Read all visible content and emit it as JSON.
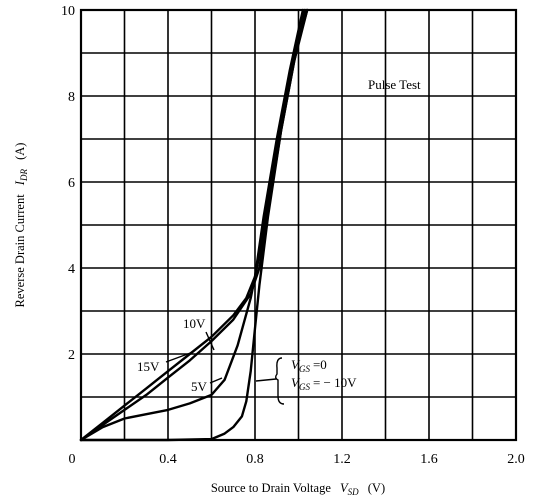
{
  "chart_data": {
    "type": "line",
    "xlabel": "Source to Drain Voltage",
    "xlabel_symbol": "V",
    "xlabel_sub": "SD",
    "xlabel_unit": "(V)",
    "ylabel": "Reverse Drain Current",
    "ylabel_symbol": "I",
    "ylabel_sub": "DR",
    "ylabel_unit": "(A)",
    "xlim": [
      0,
      2.0
    ],
    "ylim": [
      0,
      10
    ],
    "x_ticks": [
      "0",
      "0.4",
      "0.8",
      "1.2",
      "1.6",
      "2.0"
    ],
    "y_ticks": [
      "2",
      "4",
      "6",
      "8",
      "10"
    ],
    "x_tick_values": [
      0,
      0.4,
      0.8,
      1.2,
      1.6,
      2.0
    ],
    "y_tick_values": [
      2,
      4,
      6,
      8,
      10
    ],
    "x_grid_step": 0.2,
    "y_grid_step": 1,
    "grid": true,
    "annotation": "Pulse Test",
    "series": [
      {
        "name": "15V",
        "label": "15V",
        "x": [
          0.0,
          0.1,
          0.2,
          0.3,
          0.4,
          0.5,
          0.6,
          0.7,
          0.76,
          0.8,
          0.84,
          0.9,
          0.96,
          1.02
        ],
        "y": [
          0.0,
          0.4,
          0.8,
          1.2,
          1.6,
          2.0,
          2.4,
          2.9,
          3.3,
          3.8,
          5.2,
          7.0,
          8.6,
          10.0
        ]
      },
      {
        "name": "10V",
        "label": "10V",
        "x": [
          0.0,
          0.1,
          0.2,
          0.3,
          0.4,
          0.5,
          0.6,
          0.7,
          0.78,
          0.82,
          0.86,
          0.92,
          0.98,
          1.03
        ],
        "y": [
          0.0,
          0.35,
          0.7,
          1.05,
          1.45,
          1.85,
          2.3,
          2.8,
          3.4,
          4.0,
          5.3,
          7.2,
          8.8,
          10.0
        ]
      },
      {
        "name": "5V",
        "label": "5V",
        "x": [
          0.0,
          0.1,
          0.2,
          0.3,
          0.4,
          0.5,
          0.6,
          0.66,
          0.72,
          0.78,
          0.82,
          0.86,
          0.92,
          0.98,
          1.04
        ],
        "y": [
          0.0,
          0.3,
          0.5,
          0.6,
          0.7,
          0.85,
          1.05,
          1.4,
          2.2,
          3.3,
          4.3,
          5.6,
          7.4,
          8.9,
          10.0
        ]
      },
      {
        "name": "VGS=0,-10V",
        "label_line1": "=0",
        "label_line2": "= − 10V",
        "label_symbol": "V",
        "label_sub": "GS",
        "x": [
          0.0,
          0.4,
          0.6,
          0.66,
          0.7,
          0.74,
          0.76,
          0.78,
          0.8,
          0.82,
          0.86,
          0.92,
          0.98,
          1.04
        ],
        "y": [
          0.0,
          0.0,
          0.02,
          0.15,
          0.3,
          0.55,
          0.9,
          1.6,
          2.6,
          3.6,
          5.2,
          7.2,
          8.8,
          10.0
        ]
      }
    ]
  }
}
